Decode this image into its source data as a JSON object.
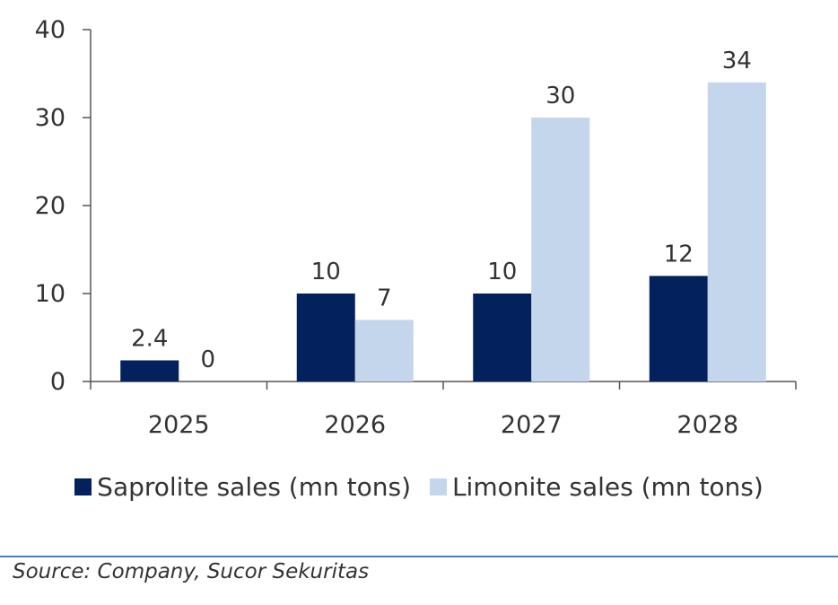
{
  "chart_data": {
    "type": "bar",
    "categories": [
      "2025",
      "2026",
      "2027",
      "2028"
    ],
    "series": [
      {
        "name": "Saprolite sales (mn tons)",
        "values": [
          2.4,
          10,
          10,
          12
        ],
        "labels": [
          "2.4",
          "10",
          "10",
          "12"
        ],
        "color": "#03215c"
      },
      {
        "name": "Limonite sales (mn tons)",
        "values": [
          0,
          7,
          30,
          34
        ],
        "labels": [
          "0",
          "7",
          "30",
          "34"
        ],
        "color": "#c3d6ec"
      }
    ],
    "yticks": [
      "0",
      "10",
      "20",
      "30",
      "40"
    ],
    "ylim": [
      0,
      40
    ],
    "legend_position": "bottom",
    "grid": false
  },
  "footer": {
    "source": "Source: Company, Sucor Sekuritas"
  }
}
